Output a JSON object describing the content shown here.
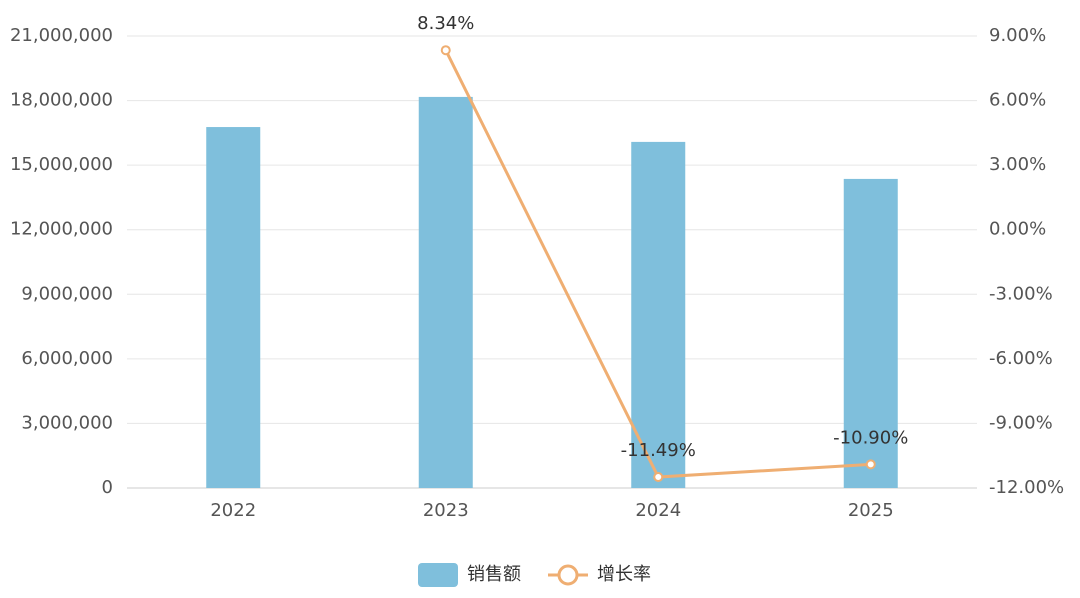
{
  "chart_data": {
    "type": "bar-line",
    "categories": [
      "2022",
      "2023",
      "2024",
      "2025"
    ],
    "series": [
      {
        "name": "销售额",
        "type": "bar",
        "color": "#7fbfdc",
        "values": [
          16770000,
          18170000,
          16080000,
          14360000
        ]
      },
      {
        "name": "增长率",
        "type": "line",
        "axis": "y2",
        "color": "#efae72",
        "values": [
          null,
          8.34,
          -11.49,
          -10.9
        ],
        "value_labels": [
          null,
          "8.34%",
          "-11.49%",
          "-10.90%"
        ]
      }
    ],
    "ylim": [
      0,
      21000000
    ],
    "yticks": [
      0,
      {
        "value": 3000000,
        "label": "3,000,000"
      },
      {
        "value": 6000000,
        "label": "6,000,000"
      },
      {
        "value": 9000000,
        "label": "9,000,000"
      },
      {
        "value": 12000000,
        "label": "12,000,000"
      },
      {
        "value": 15000000,
        "label": "15,000,000"
      },
      {
        "value": 18000000,
        "label": "18,000,000"
      },
      {
        "value": 21000000,
        "label": "21,000,000"
      }
    ],
    "y2lim": [
      -12,
      9
    ],
    "y2ticks": [
      {
        "value": -12,
        "label": "-12.00%"
      },
      {
        "value": -9,
        "label": "-9.00%"
      },
      {
        "value": -6,
        "label": "-6.00%"
      },
      {
        "value": -3,
        "label": "-3.00%"
      },
      {
        "value": 0,
        "label": "0.00%"
      },
      {
        "value": 3,
        "label": "3.00%"
      },
      {
        "value": 6,
        "label": "6.00%"
      },
      {
        "value": 9,
        "label": "9.00%"
      }
    ],
    "grid": true,
    "legend": "bottom"
  }
}
